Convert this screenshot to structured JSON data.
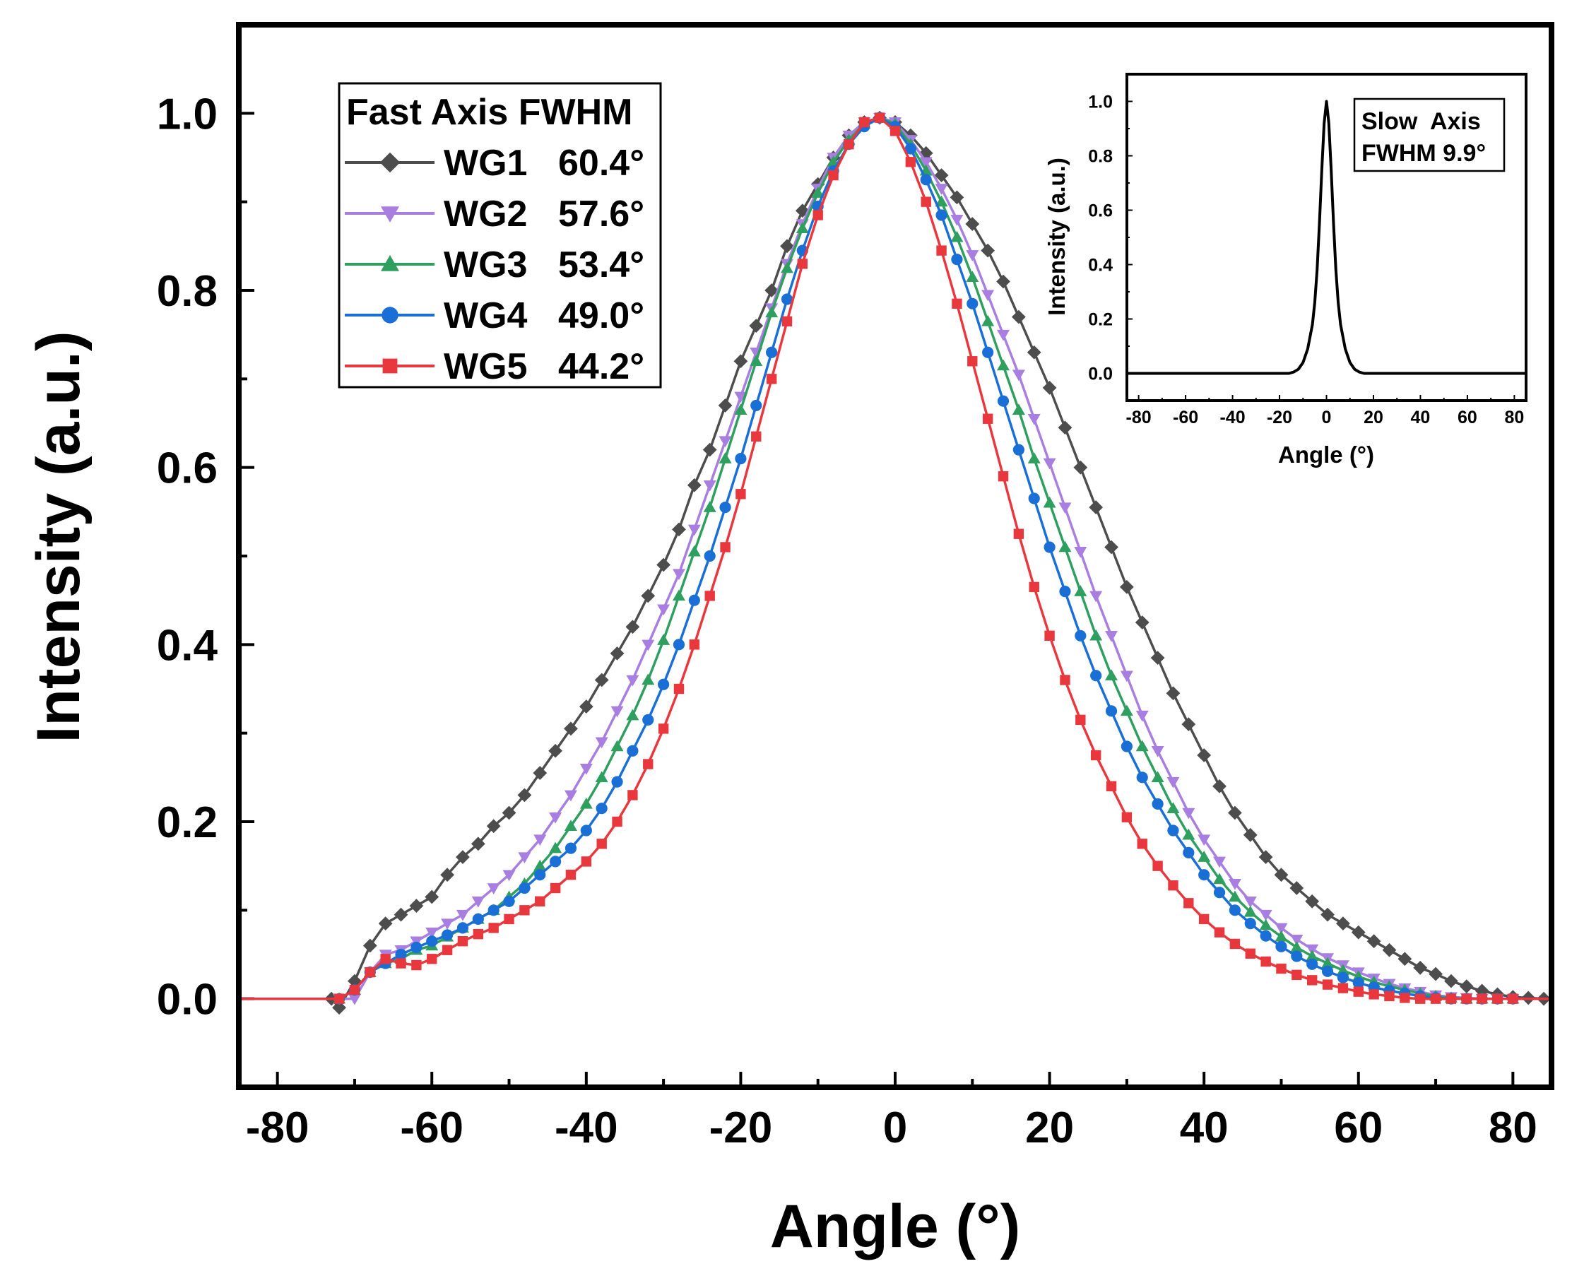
{
  "chart_data": [
    {
      "type": "line",
      "title": "",
      "xlabel": "Angle (°)",
      "ylabel": "Intensity (a.u.)",
      "xlim": [
        -85,
        85
      ],
      "ylim": [
        -0.1,
        1.1
      ],
      "xticks": [
        -80,
        -60,
        -40,
        -20,
        0,
        20,
        40,
        60,
        80
      ],
      "yticks": [
        0.0,
        0.2,
        0.4,
        0.6,
        0.8,
        1.0
      ],
      "xtick_labels": [
        "-80",
        "-60",
        "-40",
        "-20",
        "0",
        "20",
        "40",
        "60",
        "80"
      ],
      "ytick_labels": [
        "0.0",
        "0.2",
        "0.4",
        "0.6",
        "0.8",
        "1.0"
      ],
      "grid": false,
      "legend": {
        "position": "top-left",
        "title": "Fast Axis FWHM",
        "entries": [
          {
            "name": "WG1",
            "value": "60.4°"
          },
          {
            "name": "WG2",
            "value": "57.6°"
          },
          {
            "name": "WG3",
            "value": "53.4°"
          },
          {
            "name": "WG4",
            "value": "49.0°"
          },
          {
            "name": "WG5",
            "value": "44.2°"
          }
        ]
      },
      "series": [
        {
          "name": "WG1",
          "fwhm": "60.4°",
          "color": "#4d4d4d",
          "marker": "diamond",
          "x": [
            -85,
            -73,
            -72,
            -70,
            -68,
            -66,
            -64,
            -62,
            -60,
            -58,
            -56,
            -54,
            -52,
            -50,
            -48,
            -46,
            -44,
            -42,
            -40,
            -38,
            -36,
            -34,
            -32,
            -30,
            -28,
            -26,
            -24,
            -22,
            -20,
            -18,
            -16,
            -14,
            -12,
            -10,
            -8,
            -6,
            -4,
            -2,
            0,
            2,
            4,
            6,
            8,
            10,
            12,
            14,
            16,
            18,
            20,
            22,
            24,
            26,
            28,
            30,
            32,
            34,
            36,
            38,
            40,
            42,
            44,
            46,
            48,
            50,
            52,
            54,
            56,
            58,
            60,
            62,
            64,
            66,
            68,
            70,
            72,
            74,
            76,
            78,
            80,
            82,
            84,
            85
          ],
          "y": [
            0.0,
            0.0,
            -0.01,
            0.02,
            0.06,
            0.085,
            0.095,
            0.105,
            0.115,
            0.14,
            0.16,
            0.175,
            0.195,
            0.21,
            0.23,
            0.255,
            0.28,
            0.305,
            0.33,
            0.36,
            0.39,
            0.42,
            0.455,
            0.49,
            0.53,
            0.58,
            0.62,
            0.67,
            0.72,
            0.76,
            0.8,
            0.85,
            0.89,
            0.92,
            0.95,
            0.975,
            0.99,
            0.995,
            0.99,
            0.975,
            0.955,
            0.93,
            0.905,
            0.875,
            0.845,
            0.81,
            0.77,
            0.73,
            0.69,
            0.645,
            0.6,
            0.555,
            0.51,
            0.465,
            0.425,
            0.385,
            0.345,
            0.31,
            0.275,
            0.24,
            0.21,
            0.185,
            0.16,
            0.14,
            0.125,
            0.11,
            0.095,
            0.085,
            0.075,
            0.065,
            0.055,
            0.045,
            0.035,
            0.028,
            0.02,
            0.014,
            0.009,
            0.005,
            0.002,
            0.001,
            0.0,
            0.0
          ]
        },
        {
          "name": "WG2",
          "fwhm": "57.6°",
          "color": "#a87fe0",
          "marker": "triangle-down",
          "x": [
            -85,
            -72,
            -70,
            -68,
            -66,
            -64,
            -62,
            -60,
            -58,
            -56,
            -54,
            -52,
            -50,
            -48,
            -46,
            -44,
            -42,
            -40,
            -38,
            -36,
            -34,
            -32,
            -30,
            -28,
            -26,
            -24,
            -22,
            -20,
            -18,
            -16,
            -14,
            -12,
            -10,
            -8,
            -6,
            -4,
            -2,
            0,
            2,
            4,
            6,
            8,
            10,
            12,
            14,
            16,
            18,
            20,
            22,
            24,
            26,
            28,
            30,
            32,
            34,
            36,
            38,
            40,
            42,
            44,
            46,
            48,
            50,
            52,
            54,
            56,
            58,
            60,
            62,
            64,
            66,
            68,
            70,
            72,
            74,
            76,
            78,
            80,
            85
          ],
          "y": [
            0.0,
            0.0,
            0.0,
            0.03,
            0.05,
            0.055,
            0.065,
            0.075,
            0.085,
            0.095,
            0.11,
            0.125,
            0.14,
            0.16,
            0.18,
            0.205,
            0.23,
            0.26,
            0.29,
            0.325,
            0.36,
            0.4,
            0.44,
            0.48,
            0.53,
            0.58,
            0.63,
            0.68,
            0.73,
            0.78,
            0.83,
            0.875,
            0.915,
            0.95,
            0.975,
            0.99,
            0.995,
            0.99,
            0.97,
            0.945,
            0.915,
            0.88,
            0.84,
            0.795,
            0.75,
            0.705,
            0.655,
            0.605,
            0.555,
            0.505,
            0.455,
            0.41,
            0.365,
            0.32,
            0.28,
            0.245,
            0.21,
            0.18,
            0.155,
            0.13,
            0.11,
            0.095,
            0.08,
            0.067,
            0.056,
            0.046,
            0.038,
            0.03,
            0.023,
            0.017,
            0.012,
            0.008,
            0.004,
            0.002,
            0.001,
            0.0,
            0.0,
            0.0,
            0.0
          ]
        },
        {
          "name": "WG3",
          "fwhm": "53.4°",
          "color": "#2e9f5e",
          "marker": "triangle-up",
          "x": [
            -85,
            -72,
            -70,
            -68,
            -66,
            -64,
            -62,
            -60,
            -58,
            -56,
            -54,
            -52,
            -50,
            -48,
            -46,
            -44,
            -42,
            -40,
            -38,
            -36,
            -34,
            -32,
            -30,
            -28,
            -26,
            -24,
            -22,
            -20,
            -18,
            -16,
            -14,
            -12,
            -10,
            -8,
            -6,
            -4,
            -2,
            0,
            2,
            4,
            6,
            8,
            10,
            12,
            14,
            16,
            18,
            20,
            22,
            24,
            26,
            28,
            30,
            32,
            34,
            36,
            38,
            40,
            42,
            44,
            46,
            48,
            50,
            52,
            54,
            56,
            58,
            60,
            62,
            64,
            66,
            68,
            70,
            72,
            74,
            76,
            78,
            80,
            85
          ],
          "y": [
            0.0,
            0.0,
            0.01,
            0.03,
            0.04,
            0.045,
            0.055,
            0.06,
            0.07,
            0.08,
            0.09,
            0.1,
            0.115,
            0.13,
            0.15,
            0.17,
            0.195,
            0.22,
            0.25,
            0.285,
            0.32,
            0.36,
            0.405,
            0.455,
            0.505,
            0.555,
            0.61,
            0.665,
            0.72,
            0.775,
            0.825,
            0.87,
            0.91,
            0.945,
            0.97,
            0.988,
            0.995,
            0.988,
            0.965,
            0.935,
            0.9,
            0.86,
            0.815,
            0.765,
            0.715,
            0.665,
            0.61,
            0.56,
            0.51,
            0.46,
            0.41,
            0.365,
            0.325,
            0.285,
            0.25,
            0.215,
            0.185,
            0.16,
            0.135,
            0.115,
            0.098,
            0.083,
            0.07,
            0.058,
            0.048,
            0.04,
            0.032,
            0.025,
            0.019,
            0.014,
            0.01,
            0.006,
            0.003,
            0.001,
            0.0,
            0.0,
            0.0,
            0.0,
            0.0
          ]
        },
        {
          "name": "WG4",
          "fwhm": "49.0°",
          "color": "#1a6fd6",
          "marker": "circle",
          "x": [
            -85,
            -72,
            -70,
            -68,
            -66,
            -64,
            -62,
            -60,
            -58,
            -56,
            -54,
            -52,
            -50,
            -48,
            -46,
            -44,
            -42,
            -40,
            -38,
            -36,
            -34,
            -32,
            -30,
            -28,
            -26,
            -24,
            -22,
            -20,
            -18,
            -16,
            -14,
            -12,
            -10,
            -8,
            -6,
            -4,
            -2,
            0,
            2,
            4,
            6,
            8,
            10,
            12,
            14,
            16,
            18,
            20,
            22,
            24,
            26,
            28,
            30,
            32,
            34,
            36,
            38,
            40,
            42,
            44,
            46,
            48,
            50,
            52,
            54,
            56,
            58,
            60,
            62,
            64,
            66,
            68,
            70,
            72,
            74,
            76,
            78,
            80,
            85
          ],
          "y": [
            0.0,
            0.0,
            0.01,
            0.03,
            0.04,
            0.05,
            0.058,
            0.065,
            0.072,
            0.08,
            0.09,
            0.1,
            0.11,
            0.125,
            0.14,
            0.155,
            0.17,
            0.19,
            0.215,
            0.245,
            0.28,
            0.315,
            0.355,
            0.4,
            0.45,
            0.5,
            0.555,
            0.61,
            0.67,
            0.73,
            0.79,
            0.845,
            0.895,
            0.935,
            0.965,
            0.985,
            0.995,
            0.985,
            0.96,
            0.925,
            0.885,
            0.835,
            0.785,
            0.73,
            0.675,
            0.62,
            0.565,
            0.51,
            0.46,
            0.41,
            0.365,
            0.325,
            0.285,
            0.25,
            0.22,
            0.19,
            0.165,
            0.14,
            0.12,
            0.1,
            0.085,
            0.071,
            0.059,
            0.048,
            0.039,
            0.031,
            0.024,
            0.018,
            0.013,
            0.009,
            0.006,
            0.003,
            0.001,
            0.0,
            0.0,
            0.0,
            0.0,
            0.0,
            0.0
          ]
        },
        {
          "name": "WG5",
          "fwhm": "44.2°",
          "color": "#e8383d",
          "marker": "square",
          "x": [
            -85,
            -72,
            -70,
            -68,
            -66,
            -64,
            -62,
            -60,
            -58,
            -56,
            -54,
            -52,
            -50,
            -48,
            -46,
            -44,
            -42,
            -40,
            -38,
            -36,
            -34,
            -32,
            -30,
            -28,
            -26,
            -24,
            -22,
            -20,
            -18,
            -16,
            -14,
            -12,
            -10,
            -8,
            -6,
            -4,
            -2,
            0,
            2,
            4,
            6,
            8,
            10,
            12,
            14,
            16,
            18,
            20,
            22,
            24,
            26,
            28,
            30,
            32,
            34,
            36,
            38,
            40,
            42,
            44,
            46,
            48,
            50,
            52,
            54,
            56,
            58,
            60,
            62,
            64,
            66,
            68,
            70,
            72,
            74,
            76,
            78,
            80,
            85
          ],
          "y": [
            0.0,
            0.0,
            0.01,
            0.03,
            0.045,
            0.04,
            0.038,
            0.045,
            0.055,
            0.065,
            0.073,
            0.08,
            0.09,
            0.1,
            0.11,
            0.125,
            0.14,
            0.155,
            0.175,
            0.2,
            0.23,
            0.265,
            0.305,
            0.35,
            0.4,
            0.455,
            0.51,
            0.57,
            0.635,
            0.7,
            0.765,
            0.83,
            0.885,
            0.93,
            0.965,
            0.99,
            0.995,
            0.98,
            0.945,
            0.9,
            0.845,
            0.785,
            0.72,
            0.655,
            0.59,
            0.525,
            0.465,
            0.41,
            0.36,
            0.315,
            0.275,
            0.24,
            0.205,
            0.175,
            0.15,
            0.128,
            0.108,
            0.09,
            0.075,
            0.062,
            0.051,
            0.042,
            0.034,
            0.027,
            0.021,
            0.016,
            0.012,
            0.008,
            0.005,
            0.003,
            0.001,
            0.0,
            0.0,
            0.0,
            0.0,
            0.0,
            0.0,
            0.0,
            0.0
          ]
        }
      ]
    },
    {
      "type": "line",
      "title": "",
      "xlabel": "Angle (°)",
      "ylabel": "Intensity (a.u.)",
      "xlim": [
        -85,
        85
      ],
      "ylim": [
        -0.1,
        1.1
      ],
      "xticks": [
        -80,
        -60,
        -40,
        -20,
        0,
        20,
        40,
        60,
        80
      ],
      "yticks": [
        0.0,
        0.2,
        0.4,
        0.6,
        0.8,
        1.0
      ],
      "xtick_labels": [
        "-80",
        "-60",
        "-40",
        "-20",
        "0",
        "20",
        "40",
        "60",
        "80"
      ],
      "ytick_labels": [
        "0.0",
        "0.2",
        "0.4",
        "0.6",
        "0.8",
        "1.0"
      ],
      "grid": false,
      "annotation": [
        "Slow  Axis",
        "FWHM 9.9°"
      ],
      "series": [
        {
          "name": "Slow Axis",
          "fwhm": "9.9°",
          "color": "#000000",
          "marker": "none",
          "x": [
            -85,
            -16,
            -14,
            -12,
            -10,
            -8,
            -6,
            -5,
            -4,
            -3,
            -2,
            -1,
            0,
            1,
            2,
            3,
            4,
            5,
            6,
            8,
            10,
            12,
            14,
            16,
            85
          ],
          "y": [
            0.0,
            0.0,
            0.005,
            0.015,
            0.04,
            0.09,
            0.18,
            0.26,
            0.38,
            0.55,
            0.75,
            0.92,
            1.0,
            0.92,
            0.75,
            0.55,
            0.38,
            0.26,
            0.18,
            0.09,
            0.04,
            0.015,
            0.005,
            0.0,
            0.0
          ]
        }
      ]
    }
  ]
}
